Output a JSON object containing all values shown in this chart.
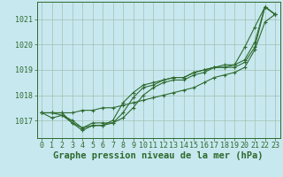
{
  "x": [
    0,
    1,
    2,
    3,
    4,
    5,
    6,
    7,
    8,
    9,
    10,
    11,
    12,
    13,
    14,
    15,
    16,
    17,
    18,
    19,
    20,
    21,
    22,
    23
  ],
  "series": [
    [
      1017.3,
      1017.3,
      1017.3,
      1017.3,
      1017.4,
      1017.4,
      1017.5,
      1017.5,
      1017.6,
      1017.7,
      1017.8,
      1017.9,
      1018.0,
      1018.1,
      1018.2,
      1018.3,
      1018.5,
      1018.7,
      1018.8,
      1018.9,
      1019.1,
      1019.8,
      1020.9,
      1021.2
    ],
    [
      1017.3,
      1017.3,
      1017.3,
      1016.9,
      1016.7,
      1016.9,
      1016.9,
      1016.9,
      1017.1,
      1017.5,
      1018.0,
      1018.3,
      1018.5,
      1018.6,
      1018.6,
      1018.8,
      1018.9,
      1019.1,
      1019.1,
      1019.1,
      1019.3,
      1019.9,
      1021.5,
      1021.2
    ],
    [
      1017.3,
      1017.3,
      1017.2,
      1017.0,
      1016.7,
      1016.8,
      1016.8,
      1017.0,
      1017.7,
      1018.1,
      1018.4,
      1018.5,
      1018.6,
      1018.7,
      1018.7,
      1018.9,
      1019.0,
      1019.1,
      1019.2,
      1019.2,
      1019.9,
      1020.7,
      1021.5,
      1021.2
    ],
    [
      1017.3,
      1017.1,
      1017.2,
      1016.9,
      1016.6,
      1016.8,
      1016.8,
      1016.9,
      1017.3,
      1017.9,
      1018.3,
      1018.4,
      1018.6,
      1018.7,
      1018.7,
      1018.9,
      1019.0,
      1019.1,
      1019.1,
      1019.2,
      1019.4,
      1020.1,
      1021.5,
      1021.2
    ]
  ],
  "line_color": "#2d6a2d",
  "marker": "+",
  "markersize": 3,
  "linewidth": 0.8,
  "bg_color": "#c8e8f0",
  "grid_color": "#a0c0b0",
  "ylabel_ticks": [
    1017,
    1018,
    1019,
    1020,
    1021
  ],
  "ylim": [
    1016.3,
    1021.7
  ],
  "xlim": [
    -0.5,
    23.5
  ],
  "xlabel": "Graphe pression niveau de la mer (hPa)",
  "xlabel_fontsize": 7.5,
  "tick_fontsize": 6,
  "tick_color": "#2d6a2d",
  "axis_color": "#2d6a2d"
}
